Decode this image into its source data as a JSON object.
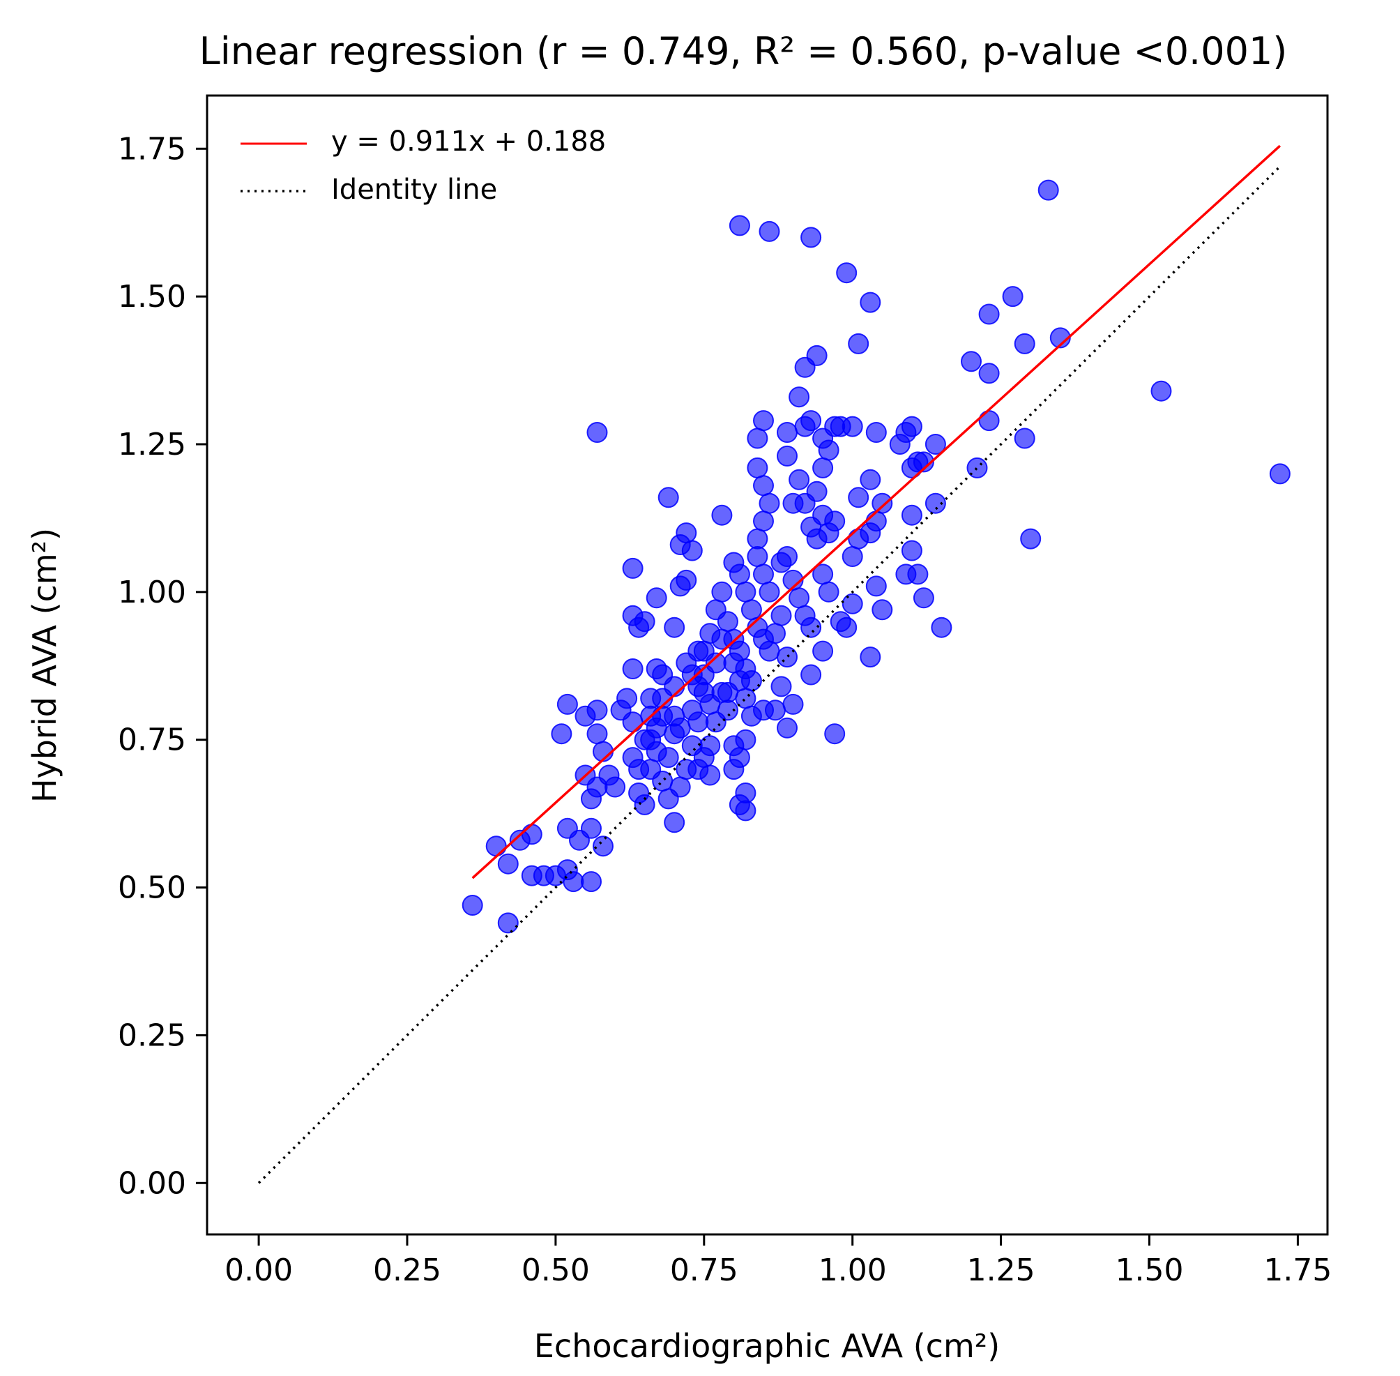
{
  "chart_data": {
    "type": "scatter",
    "title": "Linear regression (r = 0.749, R² = 0.560, p-value <0.001)",
    "xlabel": "Echocardiographic AVA (cm²)",
    "ylabel": "Hybrid AVA (cm²)",
    "xlim": [
      -0.087,
      1.8
    ],
    "ylim": [
      -0.087,
      1.84
    ],
    "xticks": [
      0.0,
      0.25,
      0.5,
      0.75,
      1.0,
      1.25,
      1.5,
      1.75
    ],
    "yticks": [
      0.0,
      0.25,
      0.5,
      0.75,
      1.0,
      1.25,
      1.5,
      1.75
    ],
    "xtick_labels": [
      "0.00",
      "0.25",
      "0.50",
      "0.75",
      "1.00",
      "1.25",
      "1.50",
      "1.75"
    ],
    "ytick_labels": [
      "0.00",
      "0.25",
      "0.50",
      "0.75",
      "1.00",
      "1.25",
      "1.50",
      "1.75"
    ],
    "grid": false,
    "legend_position": "top-left",
    "legend": [
      {
        "label": "y = 0.911x + 0.188",
        "style": "solid",
        "color": "#ff0000"
      },
      {
        "label": "Identity line",
        "style": "dotted",
        "color": "#000000"
      }
    ],
    "regression": {
      "slope": 0.911,
      "intercept": 0.188,
      "x_range": [
        0.36,
        1.72
      ],
      "color": "#ff0000"
    },
    "identity": {
      "x_range": [
        0.0,
        1.72
      ],
      "color": "#000000"
    },
    "point_color": "#0000ff",
    "points": [
      [
        0.36,
        0.47
      ],
      [
        0.42,
        0.44
      ],
      [
        0.4,
        0.57
      ],
      [
        0.42,
        0.54
      ],
      [
        0.44,
        0.58
      ],
      [
        0.46,
        0.59
      ],
      [
        0.46,
        0.52
      ],
      [
        0.48,
        0.52
      ],
      [
        0.5,
        0.52
      ],
      [
        0.52,
        0.53
      ],
      [
        0.53,
        0.51
      ],
      [
        0.52,
        0.6
      ],
      [
        0.54,
        0.58
      ],
      [
        0.56,
        0.51
      ],
      [
        0.56,
        0.6
      ],
      [
        0.58,
        0.57
      ],
      [
        0.52,
        0.81
      ],
      [
        0.51,
        0.76
      ],
      [
        0.55,
        0.79
      ],
      [
        0.57,
        0.8
      ],
      [
        0.57,
        0.76
      ],
      [
        0.58,
        0.73
      ],
      [
        0.55,
        0.69
      ],
      [
        0.56,
        0.65
      ],
      [
        0.57,
        0.67
      ],
      [
        0.59,
        0.69
      ],
      [
        0.6,
        0.67
      ],
      [
        0.61,
        0.8
      ],
      [
        0.62,
        0.82
      ],
      [
        0.63,
        0.78
      ],
      [
        0.63,
        0.72
      ],
      [
        0.64,
        0.7
      ],
      [
        0.64,
        0.66
      ],
      [
        0.65,
        0.64
      ],
      [
        0.66,
        0.7
      ],
      [
        0.66,
        0.75
      ],
      [
        0.67,
        0.77
      ],
      [
        0.68,
        0.68
      ],
      [
        0.69,
        0.65
      ],
      [
        0.7,
        0.61
      ],
      [
        0.71,
        0.67
      ],
      [
        0.72,
        0.7
      ],
      [
        0.73,
        0.74
      ],
      [
        0.74,
        0.78
      ],
      [
        0.75,
        0.72
      ],
      [
        0.76,
        0.69
      ],
      [
        0.63,
        0.87
      ],
      [
        0.64,
        0.94
      ],
      [
        0.63,
        0.96
      ],
      [
        0.65,
        0.95
      ],
      [
        0.67,
        0.87
      ],
      [
        0.68,
        0.86
      ],
      [
        0.66,
        0.82
      ],
      [
        0.68,
        0.82
      ],
      [
        0.7,
        0.79
      ],
      [
        0.7,
        0.94
      ],
      [
        0.71,
        1.01
      ],
      [
        0.72,
        1.02
      ],
      [
        0.71,
        1.08
      ],
      [
        0.72,
        1.1
      ],
      [
        0.73,
        1.07
      ],
      [
        0.69,
        1.16
      ],
      [
        0.63,
        1.04
      ],
      [
        0.57,
        1.27
      ],
      [
        0.67,
        0.99
      ],
      [
        0.7,
        0.84
      ],
      [
        0.72,
        0.88
      ],
      [
        0.73,
        0.86
      ],
      [
        0.74,
        0.84
      ],
      [
        0.75,
        0.9
      ],
      [
        0.76,
        0.93
      ],
      [
        0.77,
        0.97
      ],
      [
        0.78,
        1.0
      ],
      [
        0.79,
        0.95
      ],
      [
        0.8,
        0.92
      ],
      [
        0.8,
        0.88
      ],
      [
        0.81,
        0.85
      ],
      [
        0.82,
        0.82
      ],
      [
        0.83,
        0.79
      ],
      [
        0.78,
        0.83
      ],
      [
        0.79,
        0.8
      ],
      [
        0.77,
        0.78
      ],
      [
        0.76,
        0.81
      ],
      [
        0.8,
        0.74
      ],
      [
        0.81,
        0.72
      ],
      [
        0.82,
        0.75
      ],
      [
        0.82,
        0.66
      ],
      [
        0.81,
        0.64
      ],
      [
        0.82,
        0.63
      ],
      [
        0.8,
        0.7
      ],
      [
        0.78,
        1.13
      ],
      [
        0.8,
        1.05
      ],
      [
        0.81,
        1.03
      ],
      [
        0.82,
        1.0
      ],
      [
        0.83,
        0.97
      ],
      [
        0.84,
        0.94
      ],
      [
        0.85,
        0.92
      ],
      [
        0.86,
        0.9
      ],
      [
        0.87,
        0.93
      ],
      [
        0.88,
        0.96
      ],
      [
        0.86,
        1.0
      ],
      [
        0.85,
        1.03
      ],
      [
        0.84,
        1.06
      ],
      [
        0.84,
        1.09
      ],
      [
        0.85,
        1.12
      ],
      [
        0.86,
        1.15
      ],
      [
        0.85,
        1.18
      ],
      [
        0.84,
        1.21
      ],
      [
        0.84,
        1.26
      ],
      [
        0.85,
        1.29
      ],
      [
        0.88,
        1.05
      ],
      [
        0.89,
        1.06
      ],
      [
        0.9,
        1.02
      ],
      [
        0.91,
        0.99
      ],
      [
        0.92,
        0.96
      ],
      [
        0.93,
        0.94
      ],
      [
        0.89,
        0.89
      ],
      [
        0.88,
        0.84
      ],
      [
        0.87,
        0.8
      ],
      [
        0.85,
        0.8
      ],
      [
        0.89,
        0.77
      ],
      [
        0.9,
        0.81
      ],
      [
        0.93,
        0.86
      ],
      [
        0.95,
        0.9
      ],
      [
        0.97,
        0.76
      ],
      [
        0.9,
        1.15
      ],
      [
        0.91,
        1.19
      ],
      [
        0.92,
        1.15
      ],
      [
        0.93,
        1.11
      ],
      [
        0.94,
        1.09
      ],
      [
        0.95,
        1.13
      ],
      [
        0.96,
        1.1
      ],
      [
        0.97,
        1.12
      ],
      [
        0.94,
        1.17
      ],
      [
        0.95,
        1.21
      ],
      [
        0.96,
        1.24
      ],
      [
        0.97,
        1.28
      ],
      [
        0.92,
        1.28
      ],
      [
        0.89,
        1.23
      ],
      [
        0.89,
        1.27
      ],
      [
        0.91,
        1.33
      ],
      [
        0.93,
        1.29
      ],
      [
        0.95,
        1.26
      ],
      [
        0.92,
        1.38
      ],
      [
        0.94,
        1.4
      ],
      [
        0.98,
        1.28
      ],
      [
        1.0,
        1.28
      ],
      [
        1.01,
        1.42
      ],
      [
        0.95,
        1.03
      ],
      [
        0.96,
        1.0
      ],
      [
        0.98,
        0.95
      ],
      [
        0.99,
        0.94
      ],
      [
        1.0,
        0.98
      ],
      [
        1.01,
        1.09
      ],
      [
        1.03,
        1.1
      ],
      [
        1.04,
        1.12
      ],
      [
        1.05,
        1.15
      ],
      [
        1.01,
        1.16
      ],
      [
        1.03,
        1.19
      ],
      [
        1.04,
        1.27
      ],
      [
        1.0,
        1.06
      ],
      [
        1.03,
        0.89
      ],
      [
        1.05,
        0.97
      ],
      [
        1.04,
        1.01
      ],
      [
        0.93,
        1.6
      ],
      [
        0.86,
        1.61
      ],
      [
        0.81,
        1.62
      ],
      [
        0.99,
        1.54
      ],
      [
        1.03,
        1.49
      ],
      [
        1.08,
        1.25
      ],
      [
        1.09,
        1.27
      ],
      [
        1.1,
        1.28
      ],
      [
        1.1,
        1.21
      ],
      [
        1.11,
        1.22
      ],
      [
        1.12,
        1.22
      ],
      [
        1.14,
        1.25
      ],
      [
        1.14,
        1.15
      ],
      [
        1.1,
        1.13
      ],
      [
        1.1,
        1.07
      ],
      [
        1.09,
        1.03
      ],
      [
        1.11,
        1.03
      ],
      [
        1.12,
        0.99
      ],
      [
        1.15,
        0.94
      ],
      [
        1.2,
        1.39
      ],
      [
        1.21,
        1.21
      ],
      [
        1.23,
        1.29
      ],
      [
        1.23,
        1.37
      ],
      [
        1.23,
        1.47
      ],
      [
        1.27,
        1.5
      ],
      [
        1.29,
        1.42
      ],
      [
        1.29,
        1.26
      ],
      [
        1.3,
        1.09
      ],
      [
        1.33,
        1.68
      ],
      [
        1.35,
        1.43
      ],
      [
        1.52,
        1.34
      ],
      [
        1.72,
        1.2
      ],
      [
        0.74,
        0.9
      ],
      [
        0.75,
        0.86
      ],
      [
        0.77,
        0.88
      ],
      [
        0.78,
        0.92
      ],
      [
        0.79,
        0.83
      ],
      [
        0.81,
        0.9
      ],
      [
        0.82,
        0.87
      ],
      [
        0.83,
        0.85
      ],
      [
        0.76,
        0.74
      ],
      [
        0.74,
        0.7
      ],
      [
        0.69,
        0.72
      ],
      [
        0.67,
        0.73
      ],
      [
        0.65,
        0.75
      ],
      [
        0.66,
        0.79
      ],
      [
        0.7,
        0.76
      ],
      [
        0.71,
        0.77
      ],
      [
        0.68,
        0.79
      ],
      [
        0.73,
        0.8
      ],
      [
        0.75,
        0.83
      ]
    ]
  }
}
